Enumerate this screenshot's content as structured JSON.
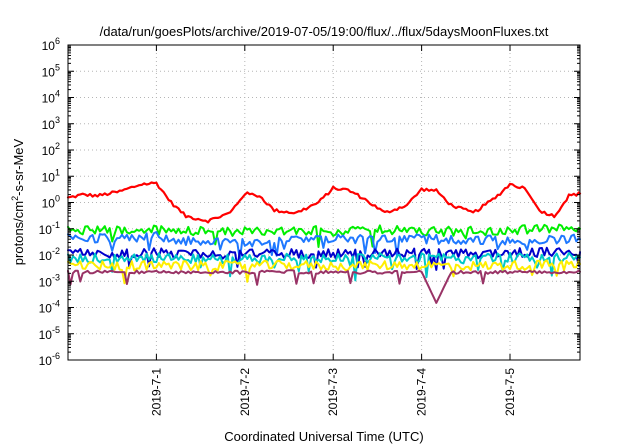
{
  "chart_data": {
    "type": "line",
    "title": "/data/run/goesPlots/archive/2019-07-05/19:00/flux/../flux/5daysMoonFluxes.txt",
    "xlabel": "Coordinated Universal Time (UTC)",
    "ylabel": "protons/cm2-s-sr-MeV",
    "ylabel_parts": {
      "base": "protons/cm",
      "sup": "2",
      "rest": "-s-sr-MeV"
    },
    "yscale": "log",
    "ylim_exponent": [
      -6,
      6
    ],
    "yticks": [
      {
        "base": "10",
        "exp": "-6",
        "value": 1e-06
      },
      {
        "base": "10",
        "exp": "-5",
        "value": 1e-05
      },
      {
        "base": "10",
        "exp": "-4",
        "value": 0.0001
      },
      {
        "base": "10",
        "exp": "-3",
        "value": 0.001
      },
      {
        "base": "10",
        "exp": "-2",
        "value": 0.01
      },
      {
        "base": "10",
        "exp": "-1",
        "value": 0.1
      },
      {
        "base": "10",
        "exp": "0",
        "value": 1
      },
      {
        "base": "10",
        "exp": "1",
        "value": 10
      },
      {
        "base": "10",
        "exp": "2",
        "value": 100
      },
      {
        "base": "10",
        "exp": "3",
        "value": 1000
      },
      {
        "base": "10",
        "exp": "4",
        "value": 10000
      },
      {
        "base": "10",
        "exp": "5",
        "value": 100000
      },
      {
        "base": "10",
        "exp": "6",
        "value": 1000000
      }
    ],
    "xlim": [
      "2019-06-30 00:00",
      "2019-07-05 19:00"
    ],
    "xticks": [
      {
        "label": "2019-7-1",
        "value": "2019-07-01 00:00"
      },
      {
        "label": "2019-7-2",
        "value": "2019-07-02 00:00"
      },
      {
        "label": "2019-7-3",
        "value": "2019-07-03 00:00"
      },
      {
        "label": "2019-7-4",
        "value": "2019-07-04 00:00"
      },
      {
        "label": "2019-7-5",
        "value": "2019-07-05 00:00"
      }
    ],
    "grid": true,
    "series": [
      {
        "color": "#ff0000",
        "points": [
          [
            "2019-06-30 00:00",
            1.5
          ],
          [
            "2019-06-30 04:00",
            2.0
          ],
          [
            "2019-06-30 08:00",
            1.8
          ],
          [
            "2019-06-30 14:00",
            2.6
          ],
          [
            "2019-06-30 20:00",
            5.0
          ],
          [
            "2019-07-01 00:00",
            5.5
          ],
          [
            "2019-07-01 04:00",
            1.0
          ],
          [
            "2019-07-01 08:00",
            0.3
          ],
          [
            "2019-07-01 14:00",
            0.2
          ],
          [
            "2019-07-01 20:00",
            0.4
          ],
          [
            "2019-07-02 00:00",
            2.2
          ],
          [
            "2019-07-02 04:00",
            1.8
          ],
          [
            "2019-07-02 08:00",
            0.5
          ],
          [
            "2019-07-02 14:00",
            0.4
          ],
          [
            "2019-07-02 20:00",
            1.0
          ],
          [
            "2019-07-03 00:00",
            3.5
          ],
          [
            "2019-07-03 04:00",
            3.0
          ],
          [
            "2019-07-03 08:00",
            1.5
          ],
          [
            "2019-07-03 14:00",
            0.4
          ],
          [
            "2019-07-03 20:00",
            0.8
          ],
          [
            "2019-07-04 00:00",
            3.2
          ],
          [
            "2019-07-04 04:00",
            2.8
          ],
          [
            "2019-07-04 08:00",
            0.8
          ],
          [
            "2019-07-04 14:00",
            0.4
          ],
          [
            "2019-07-04 20:00",
            1.5
          ],
          [
            "2019-07-05 00:00",
            5.0
          ],
          [
            "2019-07-05 04:00",
            3.5
          ],
          [
            "2019-07-05 08:00",
            0.5
          ],
          [
            "2019-07-05 12:00",
            0.3
          ],
          [
            "2019-07-05 16:00",
            1.8
          ],
          [
            "2019-07-05 19:00",
            2.2
          ]
        ]
      },
      {
        "color": "#00ee00",
        "points": [
          [
            "2019-06-30 00:00",
            0.1
          ],
          [
            "2019-06-30 12:00",
            0.08
          ],
          [
            "2019-07-01 00:00",
            0.09
          ],
          [
            "2019-07-01 12:00",
            0.08
          ],
          [
            "2019-07-02 00:00",
            0.08
          ],
          [
            "2019-07-02 12:00",
            0.09
          ],
          [
            "2019-07-03 00:00",
            0.08
          ],
          [
            "2019-07-03 12:00",
            0.09
          ],
          [
            "2019-07-04 00:00",
            0.08
          ],
          [
            "2019-07-04 12:00",
            0.08
          ],
          [
            "2019-07-05 00:00",
            0.09
          ],
          [
            "2019-07-05 19:00",
            0.1
          ]
        ]
      },
      {
        "color": "#1e78ff",
        "points": [
          [
            "2019-06-30 00:00",
            0.05
          ],
          [
            "2019-06-30 12:00",
            0.04
          ],
          [
            "2019-07-01 00:00",
            0.05
          ],
          [
            "2019-07-01 12:00",
            0.03
          ],
          [
            "2019-07-02 00:00",
            0.03
          ],
          [
            "2019-07-02 12:00",
            0.04
          ],
          [
            "2019-07-03 00:00",
            0.04
          ],
          [
            "2019-07-03 12:00",
            0.04
          ],
          [
            "2019-07-04 00:00",
            0.04
          ],
          [
            "2019-07-04 12:00",
            0.04
          ],
          [
            "2019-07-05 00:00",
            0.035
          ],
          [
            "2019-07-05 19:00",
            0.04
          ]
        ]
      },
      {
        "color": "#0000cc",
        "points": [
          [
            "2019-06-30 00:00",
            0.012
          ],
          [
            "2019-06-30 12:00",
            0.011
          ],
          [
            "2019-07-01 00:00",
            0.012
          ],
          [
            "2019-07-01 12:00",
            0.011
          ],
          [
            "2019-07-02 00:00",
            0.011
          ],
          [
            "2019-07-02 12:00",
            0.012
          ],
          [
            "2019-07-03 00:00",
            0.011
          ],
          [
            "2019-07-03 12:00",
            0.012
          ],
          [
            "2019-07-04 00:00",
            0.012
          ],
          [
            "2019-07-04 12:00",
            0.011
          ],
          [
            "2019-07-05 00:00",
            0.012
          ],
          [
            "2019-07-05 19:00",
            0.013
          ]
        ]
      },
      {
        "color": "#00c8c8",
        "points": [
          [
            "2019-06-30 00:00",
            0.008
          ],
          [
            "2019-06-30 12:00",
            0.007
          ],
          [
            "2019-07-01 00:00",
            0.008
          ],
          [
            "2019-07-01 12:00",
            0.007
          ],
          [
            "2019-07-02 00:00",
            0.007
          ],
          [
            "2019-07-02 12:00",
            0.008
          ],
          [
            "2019-07-03 00:00",
            0.007
          ],
          [
            "2019-07-03 12:00",
            0.008
          ],
          [
            "2019-07-04 00:00",
            0.008
          ],
          [
            "2019-07-04 12:00",
            0.007
          ],
          [
            "2019-07-05 00:00",
            0.008
          ],
          [
            "2019-07-05 19:00",
            0.008
          ]
        ]
      },
      {
        "color": "#ffee00",
        "points": [
          [
            "2019-06-30 00:00",
            0.004
          ],
          [
            "2019-06-30 12:00",
            0.0038
          ],
          [
            "2019-07-01 00:00",
            0.004
          ],
          [
            "2019-07-01 12:00",
            0.0038
          ],
          [
            "2019-07-02 00:00",
            0.0039
          ],
          [
            "2019-07-02 12:00",
            0.0041
          ],
          [
            "2019-07-03 00:00",
            0.0038
          ],
          [
            "2019-07-03 12:00",
            0.004
          ],
          [
            "2019-07-04 00:00",
            0.0042
          ],
          [
            "2019-07-04 12:00",
            0.0038
          ],
          [
            "2019-07-05 00:00",
            0.004
          ],
          [
            "2019-07-05 19:00",
            0.0045
          ]
        ]
      },
      {
        "color": "#993366",
        "points": [
          [
            "2019-06-30 00:00",
            0.0022
          ],
          [
            "2019-06-30 12:00",
            0.0022
          ],
          [
            "2019-07-01 00:00",
            0.0023
          ],
          [
            "2019-07-01 12:00",
            0.0022
          ],
          [
            "2019-07-02 00:00",
            0.0022
          ],
          [
            "2019-07-02 12:00",
            0.0023
          ],
          [
            "2019-07-03 00:00",
            0.0022
          ],
          [
            "2019-07-03 12:00",
            0.0022
          ],
          [
            "2019-07-04 00:00",
            0.0023
          ],
          [
            "2019-07-04 04:00",
            0.00015
          ],
          [
            "2019-07-04 08:00",
            0.0022
          ],
          [
            "2019-07-05 00:00",
            0.0022
          ],
          [
            "2019-07-05 19:00",
            0.0023
          ]
        ]
      }
    ]
  }
}
